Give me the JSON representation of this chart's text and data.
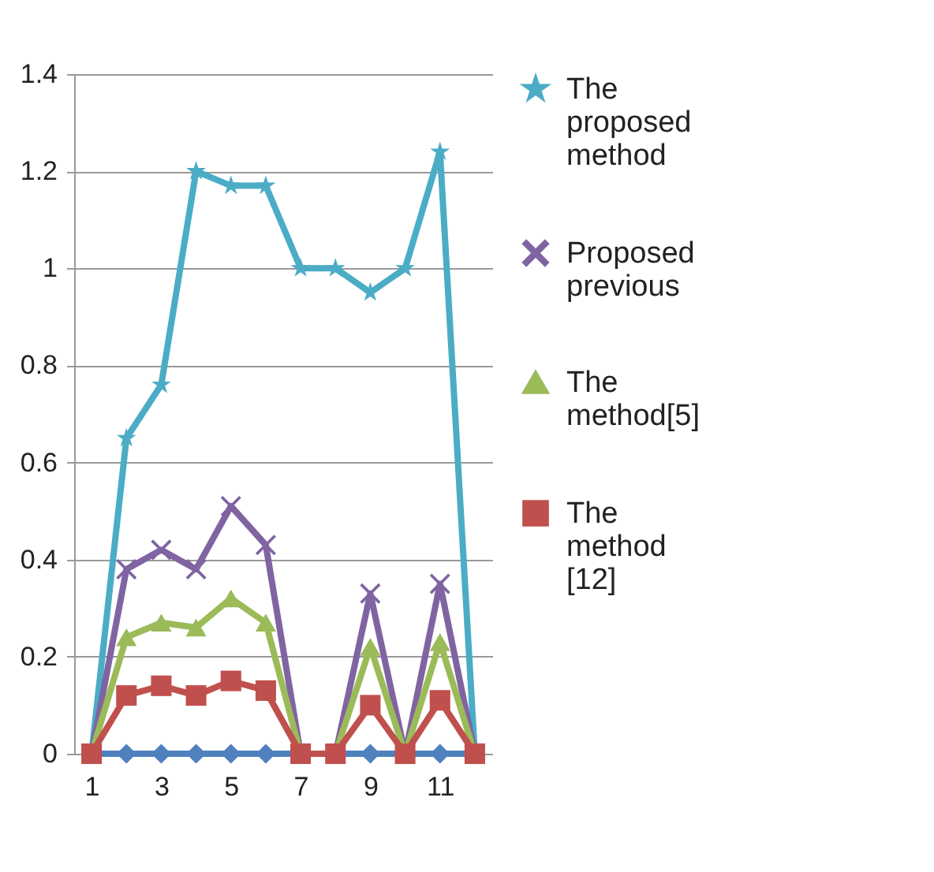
{
  "chart_data": {
    "type": "line",
    "categories": [
      "1",
      null,
      "3",
      null,
      "5",
      null,
      "7",
      null,
      "9",
      null,
      "11",
      null
    ],
    "series": [
      {
        "name": "The proposed method",
        "color": "#4bacc6",
        "marker": "star",
        "values": [
          0,
          0.65,
          0.76,
          1.2,
          1.17,
          1.17,
          1.0,
          1.0,
          0.95,
          1.0,
          1.24,
          0
        ]
      },
      {
        "name": "Proposed previous",
        "color": "#8064a2",
        "marker": "cross",
        "values": [
          0,
          0.38,
          0.42,
          0.38,
          0.51,
          0.43,
          0,
          0,
          0.33,
          0,
          0.35,
          0
        ]
      },
      {
        "name": "The method[5]",
        "color": "#9bbb59",
        "marker": "triangle",
        "values": [
          0,
          0.24,
          0.27,
          0.26,
          0.32,
          0.27,
          0,
          0,
          0.22,
          0,
          0.23,
          0
        ]
      },
      {
        "name": "The method [12]",
        "color": "#c0504d",
        "marker": "square",
        "values": [
          0,
          0.12,
          0.14,
          0.12,
          0.15,
          0.13,
          0,
          0,
          0.1,
          0,
          0.11,
          0
        ]
      },
      {
        "color": "#4f81bd",
        "marker": "diamond",
        "values": [
          0,
          0,
          0,
          0,
          0,
          0,
          0,
          0,
          0,
          0,
          0,
          0
        ]
      }
    ],
    "ylim": [
      0,
      1.4
    ],
    "yticks": [
      0,
      0.2,
      0.4,
      0.6,
      0.8,
      1,
      1.2,
      1.4
    ],
    "grid": "y",
    "legend": "right",
    "line_style": "solid"
  }
}
